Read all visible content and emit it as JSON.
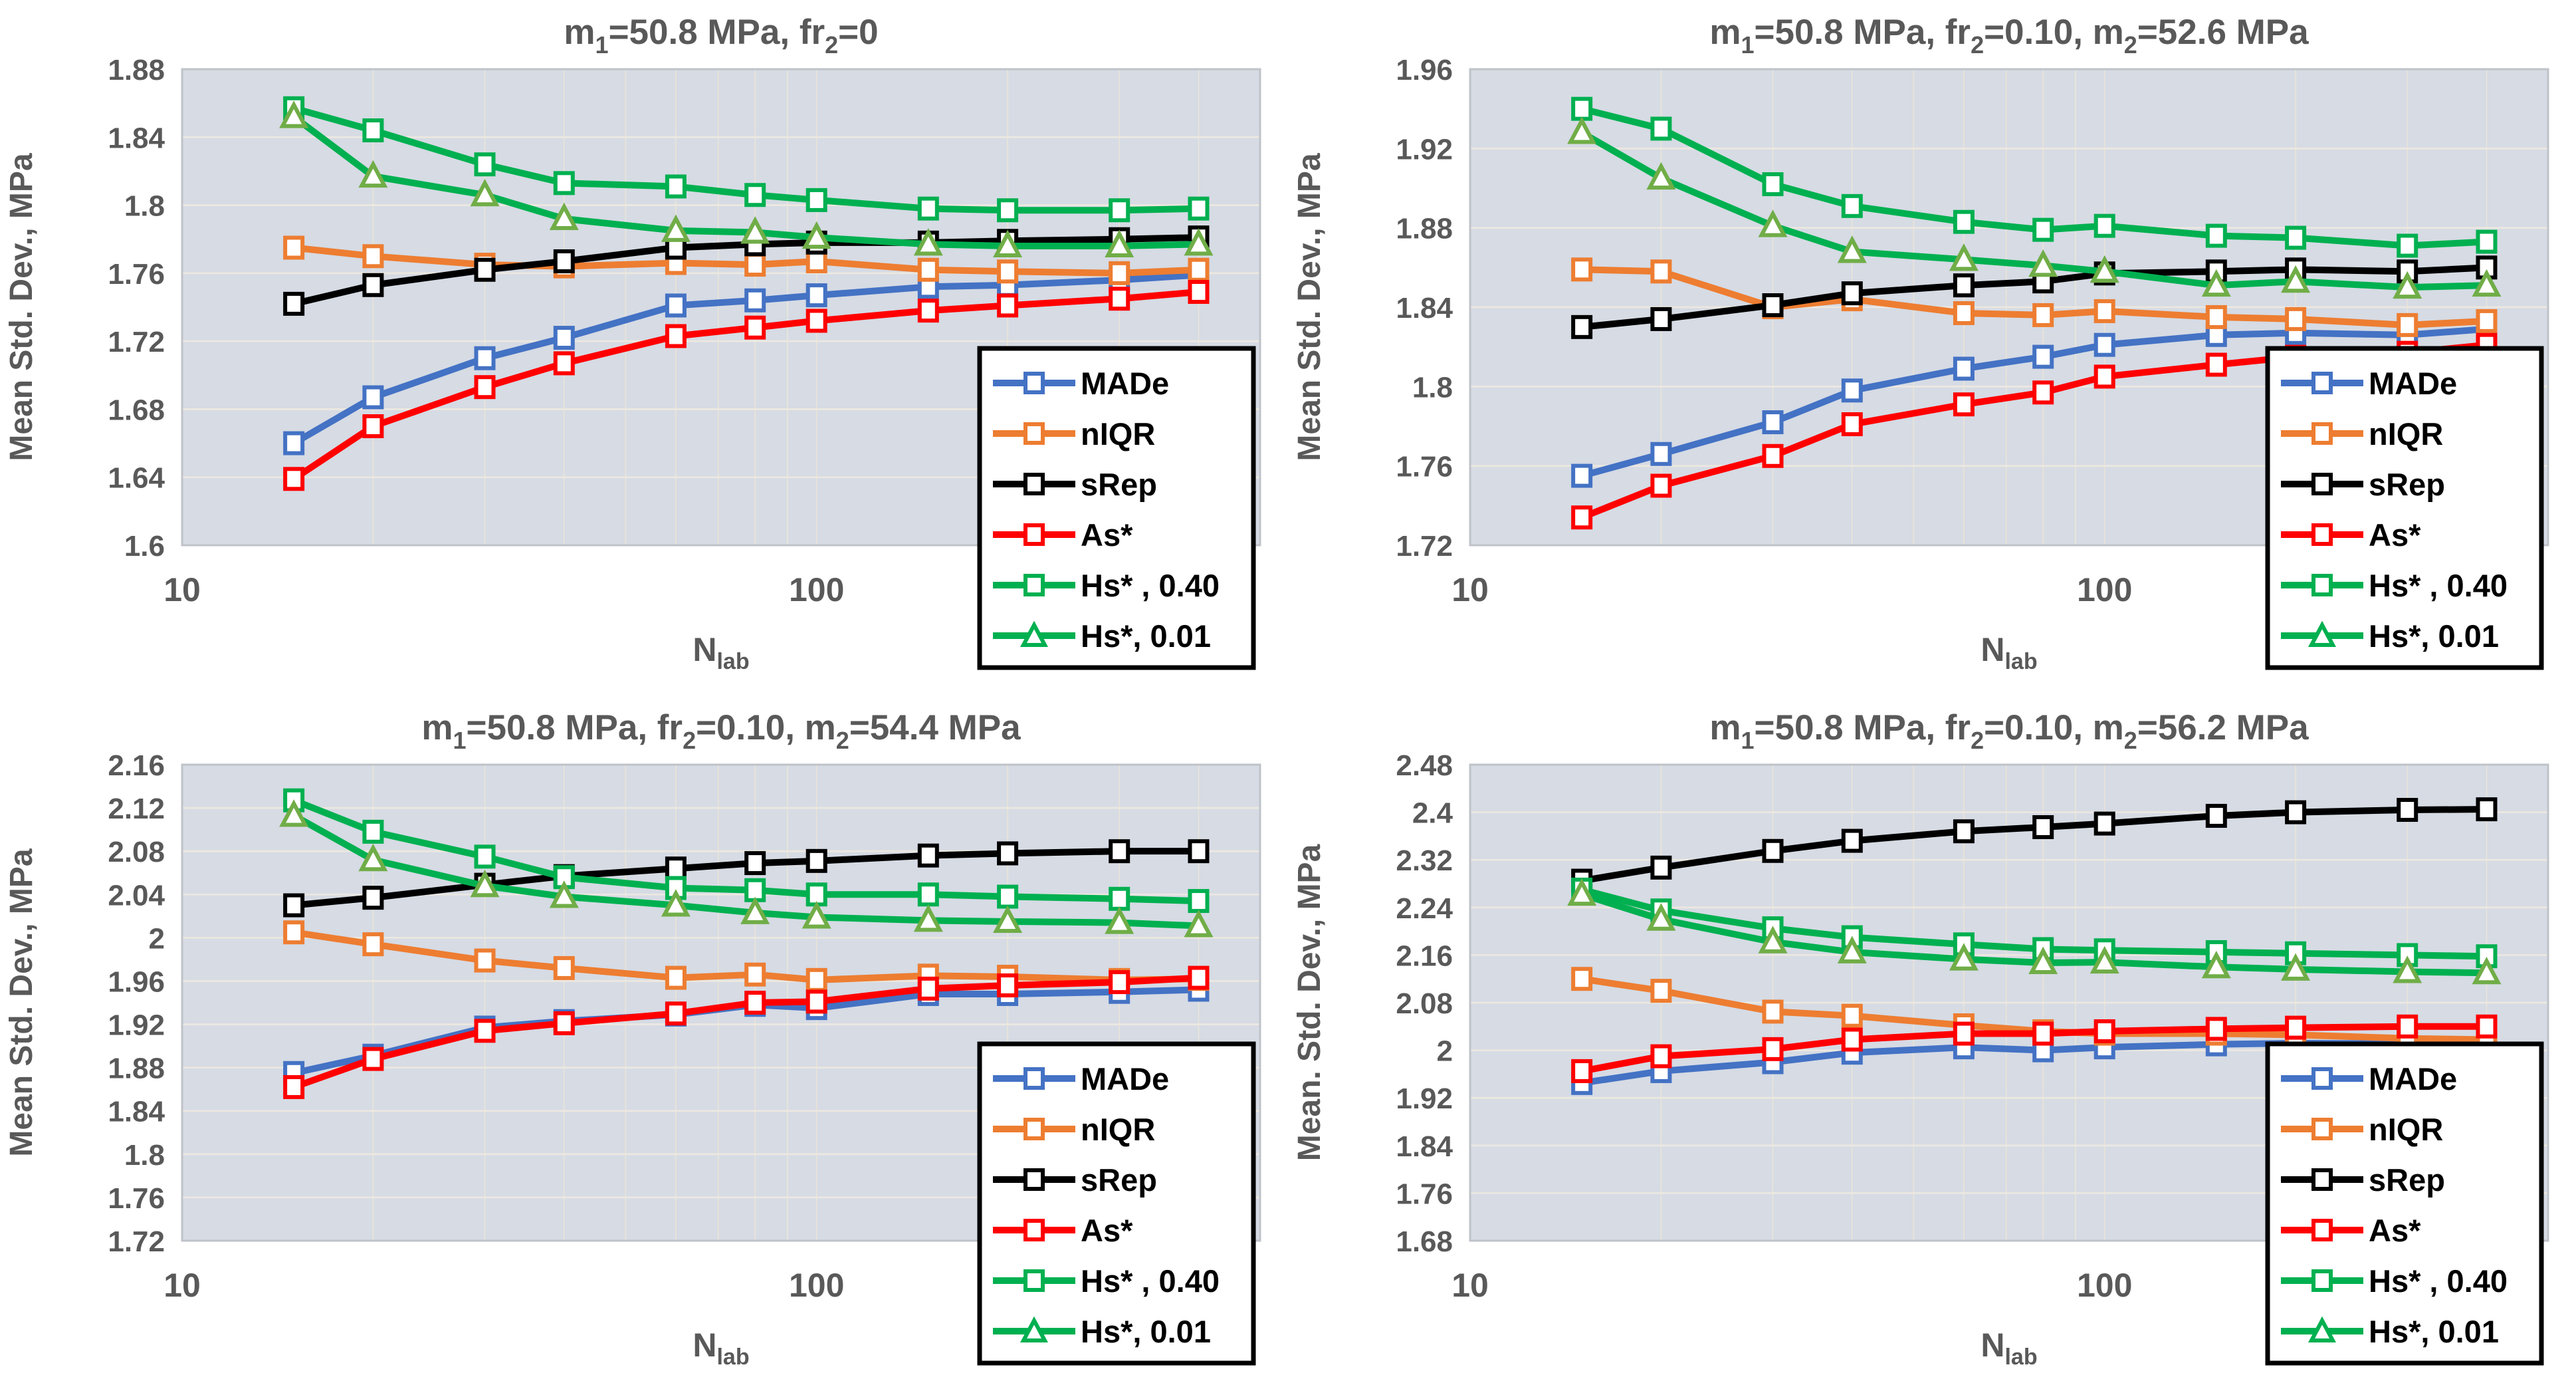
{
  "figure": {
    "description": "Four line charts of mean standard deviation estimates vs number of labs",
    "plot_bg_color": "#d6dbe4",
    "gridline_color": "#ece8e0",
    "minor_gridline_color": "#e7e3da",
    "axis_text_color": "#595959",
    "legend_border_color": "#000000"
  },
  "chart_data": [
    {
      "type": "line",
      "title_runs": [
        {
          "t": "m"
        },
        {
          "t": "1",
          "sub": true
        },
        {
          "t": "=50.8 MPa, fr"
        },
        {
          "t": "2",
          "sub": true
        },
        {
          "t": "=0"
        }
      ],
      "ylabel": "Mean Std. Dev., MPa",
      "xlabel_runs": [
        {
          "t": "N"
        },
        {
          "t": "lab",
          "sub": true
        }
      ],
      "xscale": "log",
      "xlim": [
        10,
        500
      ],
      "xtick_labels": [
        "10",
        "100"
      ],
      "xtick_vals": [
        10,
        100
      ],
      "ylim": [
        1.6,
        1.88
      ],
      "ytick_vals": [
        1.6,
        1.64,
        1.68,
        1.72,
        1.76,
        1.8,
        1.84,
        1.88
      ],
      "ytick_labels": [
        "1.6",
        "1.64",
        "1.68",
        "1.72",
        "1.76",
        "1.8",
        "1.84",
        "1.88"
      ],
      "x": [
        15,
        20,
        30,
        40,
        60,
        80,
        100,
        150,
        200,
        300,
        400
      ],
      "series": [
        {
          "name": "MADe",
          "color": "#4472C4",
          "marker": "square",
          "values": [
            1.66,
            1.687,
            1.71,
            1.722,
            1.741,
            1.744,
            1.747,
            1.752,
            1.753,
            1.756,
            1.759
          ]
        },
        {
          "name": "nIQR",
          "color": "#ED7D31",
          "marker": "square",
          "values": [
            1.775,
            1.77,
            1.765,
            1.764,
            1.766,
            1.765,
            1.767,
            1.762,
            1.761,
            1.76,
            1.762
          ]
        },
        {
          "name": "sRep",
          "color": "#000000",
          "marker": "square",
          "values": [
            1.742,
            1.753,
            1.762,
            1.767,
            1.775,
            1.777,
            1.778,
            1.778,
            1.779,
            1.78,
            1.781
          ]
        },
        {
          "name": "As*",
          "color": "#FF0000",
          "marker": "square",
          "values": [
            1.639,
            1.67,
            1.693,
            1.707,
            1.723,
            1.728,
            1.732,
            1.738,
            1.741,
            1.745,
            1.749
          ]
        },
        {
          "name": "Hs* , 0.40",
          "color": "#00B050",
          "marker": "square",
          "values": [
            1.857,
            1.844,
            1.824,
            1.813,
            1.811,
            1.806,
            1.803,
            1.798,
            1.797,
            1.797,
            1.798
          ]
        },
        {
          "name": "Hs*, 0.01",
          "color": "#00B050",
          "marker": "triangle",
          "marker_stroke": "#70AD47",
          "values": [
            1.852,
            1.817,
            1.806,
            1.792,
            1.785,
            1.784,
            1.781,
            1.777,
            1.776,
            1.776,
            1.777
          ]
        }
      ],
      "legend_position": "inside-bottom-right",
      "grid": true
    },
    {
      "type": "line",
      "title_runs": [
        {
          "t": "m"
        },
        {
          "t": "1",
          "sub": true
        },
        {
          "t": "=50.8 MPa, fr"
        },
        {
          "t": "2",
          "sub": true
        },
        {
          "t": "=0.10, m"
        },
        {
          "t": "2",
          "sub": true
        },
        {
          "t": "=52.6 MPa"
        }
      ],
      "ylabel": "Mean Std. Dev., MPa",
      "xlabel_runs": [
        {
          "t": "N"
        },
        {
          "t": "lab",
          "sub": true
        }
      ],
      "xscale": "log",
      "xlim": [
        10,
        500
      ],
      "xtick_labels": [
        "10",
        "100"
      ],
      "xtick_vals": [
        10,
        100
      ],
      "ylim": [
        1.72,
        1.96
      ],
      "ytick_vals": [
        1.72,
        1.76,
        1.8,
        1.84,
        1.88,
        1.92,
        1.96
      ],
      "ytick_labels": [
        "1.72",
        "1.76",
        "1.8",
        "1.84",
        "1.88",
        "1.92",
        "1.96"
      ],
      "x": [
        15,
        20,
        30,
        40,
        60,
        80,
        100,
        150,
        200,
        300,
        400
      ],
      "series": [
        {
          "name": "MADe",
          "color": "#4472C4",
          "marker": "square",
          "values": [
            1.755,
            1.766,
            1.782,
            1.798,
            1.809,
            1.815,
            1.821,
            1.826,
            1.827,
            1.826,
            1.829
          ]
        },
        {
          "name": "nIQR",
          "color": "#ED7D31",
          "marker": "square",
          "values": [
            1.859,
            1.858,
            1.84,
            1.844,
            1.837,
            1.836,
            1.838,
            1.835,
            1.834,
            1.831,
            1.833
          ]
        },
        {
          "name": "sRep",
          "color": "#000000",
          "marker": "square",
          "values": [
            1.83,
            1.834,
            1.841,
            1.847,
            1.851,
            1.853,
            1.857,
            1.858,
            1.859,
            1.858,
            1.86
          ]
        },
        {
          "name": "As*",
          "color": "#FF0000",
          "marker": "square",
          "values": [
            1.734,
            1.75,
            1.765,
            1.781,
            1.791,
            1.797,
            1.805,
            1.811,
            1.815,
            1.817,
            1.821
          ]
        },
        {
          "name": "Hs* , 0.40",
          "color": "#00B050",
          "marker": "square",
          "values": [
            1.94,
            1.93,
            1.902,
            1.891,
            1.883,
            1.879,
            1.881,
            1.876,
            1.875,
            1.871,
            1.873
          ]
        },
        {
          "name": "Hs*, 0.01",
          "color": "#00B050",
          "marker": "triangle",
          "marker_stroke": "#70AD47",
          "values": [
            1.928,
            1.905,
            1.881,
            1.868,
            1.864,
            1.861,
            1.858,
            1.851,
            1.853,
            1.85,
            1.851
          ]
        }
      ],
      "legend_position": "inside-bottom-right",
      "grid": true
    },
    {
      "type": "line",
      "title_runs": [
        {
          "t": "m"
        },
        {
          "t": "1",
          "sub": true
        },
        {
          "t": "=50.8 MPa, fr"
        },
        {
          "t": "2",
          "sub": true
        },
        {
          "t": "=0.10, m"
        },
        {
          "t": "2",
          "sub": true
        },
        {
          "t": "=54.4 MPa"
        }
      ],
      "ylabel": "Mean Std. Dev., MPa",
      "xlabel_runs": [
        {
          "t": "N"
        },
        {
          "t": "lab",
          "sub": true
        }
      ],
      "xscale": "log",
      "xlim": [
        10,
        500
      ],
      "xtick_labels": [
        "10",
        "100"
      ],
      "xtick_vals": [
        10,
        100
      ],
      "ylim": [
        1.72,
        2.16
      ],
      "ytick_vals": [
        1.72,
        1.76,
        1.8,
        1.84,
        1.88,
        1.92,
        1.96,
        2,
        2.04,
        2.08,
        2.12,
        2.16
      ],
      "ytick_labels": [
        "1.72",
        "1.76",
        "1.8",
        "1.84",
        "1.88",
        "1.92",
        "1.96",
        "2",
        "2.04",
        "2.08",
        "2.12",
        "2.16"
      ],
      "x": [
        15,
        20,
        30,
        40,
        60,
        80,
        100,
        150,
        200,
        300,
        400
      ],
      "series": [
        {
          "name": "MADe",
          "color": "#4472C4",
          "marker": "square",
          "values": [
            1.875,
            1.891,
            1.917,
            1.923,
            1.929,
            1.938,
            1.935,
            1.948,
            1.948,
            1.95,
            1.952
          ]
        },
        {
          "name": "nIQR",
          "color": "#ED7D31",
          "marker": "square",
          "values": [
            2.005,
            1.994,
            1.979,
            1.972,
            1.963,
            1.966,
            1.961,
            1.965,
            1.964,
            1.961,
            1.962
          ]
        },
        {
          "name": "sRep",
          "color": "#000000",
          "marker": "square",
          "values": [
            2.03,
            2.037,
            2.049,
            2.057,
            2.064,
            2.069,
            2.071,
            2.076,
            2.078,
            2.08,
            2.08
          ]
        },
        {
          "name": "As*",
          "color": "#FF0000",
          "marker": "square",
          "values": [
            1.862,
            1.888,
            1.914,
            1.921,
            1.93,
            1.94,
            1.941,
            1.953,
            1.956,
            1.959,
            1.963
          ]
        },
        {
          "name": "Hs* , 0.40",
          "color": "#00B050",
          "marker": "square",
          "values": [
            2.127,
            2.098,
            2.075,
            2.056,
            2.046,
            2.044,
            2.04,
            2.04,
            2.038,
            2.036,
            2.034
          ]
        },
        {
          "name": "Hs*, 0.01",
          "color": "#00B050",
          "marker": "triangle",
          "marker_stroke": "#70AD47",
          "values": [
            2.113,
            2.072,
            2.048,
            2.038,
            2.03,
            2.023,
            2.019,
            2.016,
            2.015,
            2.014,
            2.011
          ]
        }
      ],
      "legend_position": "inside-bottom-right",
      "grid": true
    },
    {
      "type": "line",
      "title_runs": [
        {
          "t": "m"
        },
        {
          "t": "1",
          "sub": true
        },
        {
          "t": "=50.8 MPa, fr"
        },
        {
          "t": "2",
          "sub": true
        },
        {
          "t": "=0.10, m"
        },
        {
          "t": "2",
          "sub": true
        },
        {
          "t": "=56.2 MPa"
        }
      ],
      "ylabel": "Mean. Std. Dev., MPa",
      "xlabel_runs": [
        {
          "t": "N"
        },
        {
          "t": "lab",
          "sub": true
        }
      ],
      "xscale": "log",
      "xlim": [
        10,
        500
      ],
      "xtick_labels": [
        "10",
        "100"
      ],
      "xtick_vals": [
        10,
        100
      ],
      "ylim": [
        1.68,
        2.48
      ],
      "ytick_vals": [
        1.68,
        1.76,
        1.84,
        1.92,
        2,
        2.08,
        2.16,
        2.24,
        2.32,
        2.4,
        2.48
      ],
      "ytick_labels": [
        "1.68",
        "1.76",
        "1.84",
        "1.92",
        "2",
        "2.08",
        "2.16",
        "2.24",
        "2.32",
        "2.4",
        "2.48"
      ],
      "x": [
        15,
        20,
        30,
        40,
        60,
        80,
        100,
        150,
        200,
        300,
        400
      ],
      "series": [
        {
          "name": "MADe",
          "color": "#4472C4",
          "marker": "square",
          "values": [
            1.945,
            1.965,
            1.98,
            1.996,
            2.005,
            2.0,
            2.005,
            2.01,
            2.012,
            2.011,
            2.012
          ]
        },
        {
          "name": "nIQR",
          "color": "#ED7D31",
          "marker": "square",
          "values": [
            2.12,
            2.1,
            2.065,
            2.058,
            2.042,
            2.032,
            2.028,
            2.028,
            2.026,
            2.02,
            2.018
          ]
        },
        {
          "name": "sRep",
          "color": "#000000",
          "marker": "square",
          "values": [
            2.285,
            2.307,
            2.335,
            2.352,
            2.368,
            2.375,
            2.381,
            2.394,
            2.4,
            2.404,
            2.405
          ]
        },
        {
          "name": "As*",
          "color": "#FF0000",
          "marker": "square",
          "values": [
            1.965,
            1.99,
            2.002,
            2.018,
            2.028,
            2.028,
            2.032,
            2.036,
            2.038,
            2.04,
            2.04
          ]
        },
        {
          "name": "Hs* , 0.40",
          "color": "#00B050",
          "marker": "square",
          "values": [
            2.27,
            2.235,
            2.205,
            2.19,
            2.178,
            2.17,
            2.168,
            2.165,
            2.163,
            2.16,
            2.158
          ]
        },
        {
          "name": "Hs*, 0.01",
          "color": "#00B050",
          "marker": "triangle",
          "marker_stroke": "#70AD47",
          "values": [
            2.262,
            2.22,
            2.182,
            2.165,
            2.153,
            2.147,
            2.148,
            2.14,
            2.136,
            2.132,
            2.13
          ]
        }
      ],
      "legend_position": "inside-bottom-right",
      "grid": true
    }
  ]
}
